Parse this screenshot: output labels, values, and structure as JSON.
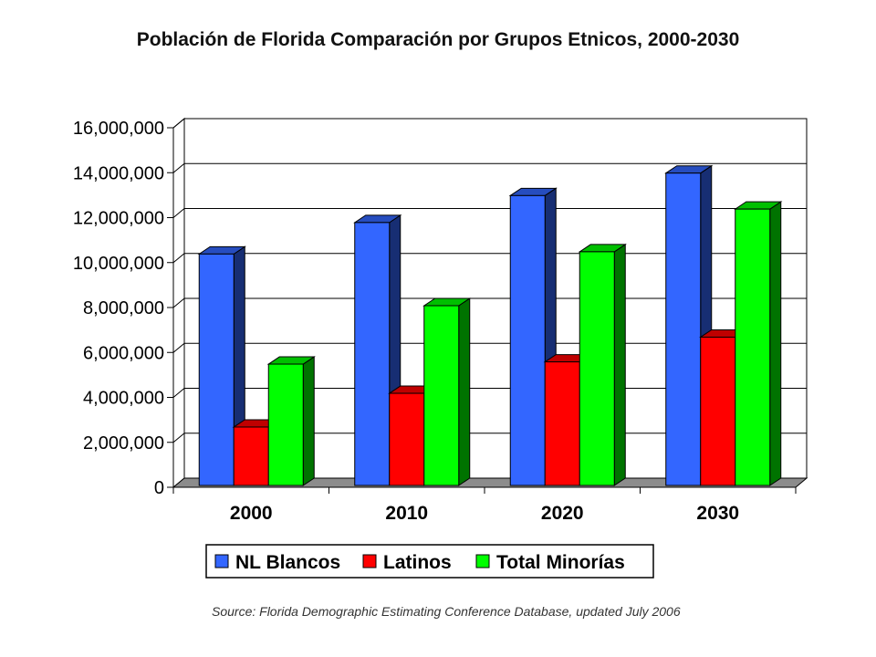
{
  "chart_data": {
    "type": "bar",
    "title": "Población de Florida Comparación por Grupos Etnicos, 2000-2030",
    "categories": [
      "2000",
      "2010",
      "2020",
      "2030"
    ],
    "series": [
      {
        "name": "NL Blancos",
        "values": [
          10300000,
          11700000,
          12900000,
          13900000
        ],
        "color": "#3366ff"
      },
      {
        "name": "Latinos",
        "values": [
          2600000,
          4100000,
          5500000,
          6600000
        ],
        "color": "#ff0000"
      },
      {
        "name": "Total Minorías",
        "values": [
          5400000,
          8000000,
          10400000,
          12300000
        ],
        "color": "#00ff00"
      }
    ],
    "y_ticks": [
      "0",
      "2,000,000",
      "4,000,000",
      "6,000,000",
      "8,000,000",
      "10,000,000",
      "12,000,000",
      "14,000,000",
      "16,000,000"
    ],
    "ylim": [
      0,
      16000000
    ],
    "grid": true,
    "legend_position": "bottom",
    "style": "3d-clustered-column"
  },
  "source": "Source: Florida Demographic Estimating Conference Database, updated July 2006"
}
